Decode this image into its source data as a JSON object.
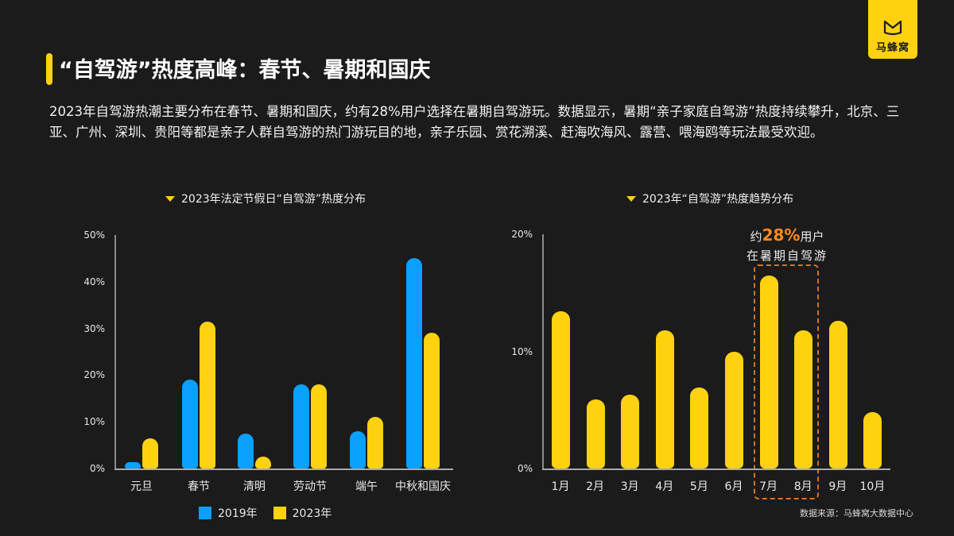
{
  "logo": {
    "text": "马蜂窝",
    "icon": "m-logo-icon",
    "color": "#ffd20f"
  },
  "header": {
    "title": "“自驾游”热度高峰：春节、暑期和国庆"
  },
  "description": "2023年自驾游热潮主要分布在春节、暑期和国庆，约有28%用户选择在暑期自驾游玩。数据显示，暑期“亲子家庭自驾游”热度持续攀升，北京、三亚、广州、深圳、贵阳等都是亲子人群自驾游的热门游玩目的地，亲子乐园、赏花溯溪、赶海吹海风、露营、喂海鸥等玩法最受欢迎。",
  "annotation": {
    "prefix": "约",
    "value": "28%",
    "suffix": "用户",
    "line2": "在暑期自驾游"
  },
  "source": "数据来源：马蜂窝大数据中心",
  "colors": {
    "series_2019": "#0aa0ff",
    "series_2023": "#ffd20f",
    "accent": "#ff8a1f",
    "background": "#1b1b1b"
  },
  "chart_data": [
    {
      "type": "bar",
      "title": "2023年法定节假日“自驾游”热度分布",
      "categories": [
        "元旦",
        "春节",
        "清明",
        "劳动节",
        "端午",
        "中秋和国庆"
      ],
      "series": [
        {
          "name": "2019年",
          "values": [
            1,
            19,
            7.5,
            18,
            8,
            45
          ]
        },
        {
          "name": "2023年",
          "values": [
            6.5,
            31.5,
            2.5,
            18,
            11,
            29
          ]
        }
      ],
      "yticks": [
        "0%",
        "10%",
        "20%",
        "30%",
        "40%",
        "50%"
      ],
      "ylim": [
        0,
        50
      ],
      "xlabel": "",
      "ylabel": "",
      "legend": [
        "2019年",
        "2023年"
      ],
      "legend_position": "bottom"
    },
    {
      "type": "bar",
      "title": "2023年“自驾游”热度趋势分布",
      "categories": [
        "1月",
        "2月",
        "3月",
        "4月",
        "5月",
        "6月",
        "7月",
        "8月",
        "9月",
        "10月"
      ],
      "values": [
        13.4,
        5.9,
        6.3,
        11.8,
        6.9,
        10,
        16.5,
        11.8,
        12.6,
        4.8
      ],
      "yticks": [
        "0%",
        "10%",
        "20%"
      ],
      "ylim": [
        0,
        20
      ],
      "xlabel": "",
      "ylabel": "",
      "annotation": "约28%用户在暑期自驾游 (7月、8月)"
    }
  ]
}
